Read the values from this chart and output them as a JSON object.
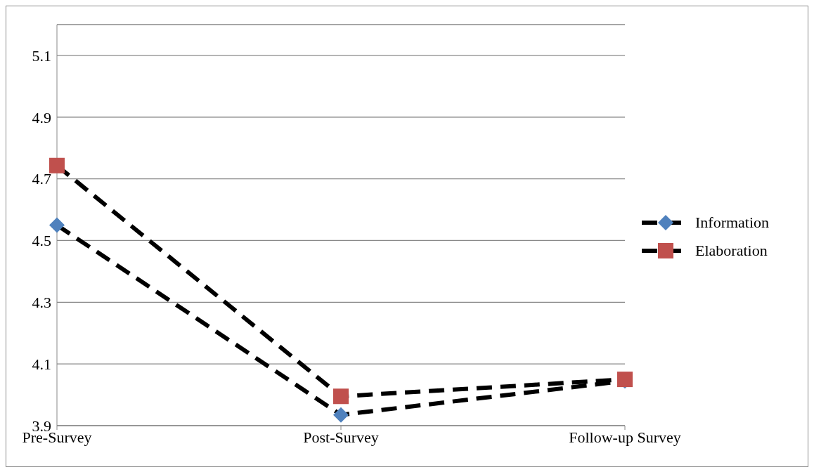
{
  "chart_data": {
    "type": "line",
    "categories": [
      "Pre-Survey",
      "Post-Survey",
      "Follow-up Survey"
    ],
    "series": [
      {
        "name": "Information",
        "color": "#4f81bd",
        "marker": "diamond",
        "line_style": "dashed",
        "values": [
          4.55,
          3.935,
          4.045
        ]
      },
      {
        "name": "Elaboration",
        "color": "#c0504d",
        "marker": "square",
        "line_style": "dashed",
        "values": [
          4.743,
          3.995,
          4.05
        ]
      }
    ],
    "ylim": [
      3.9,
      5.2
    ],
    "yticks": [
      3.9,
      4.1,
      4.3,
      4.5,
      4.7,
      4.9,
      5.1
    ],
    "grid": "y",
    "legend": "right"
  }
}
